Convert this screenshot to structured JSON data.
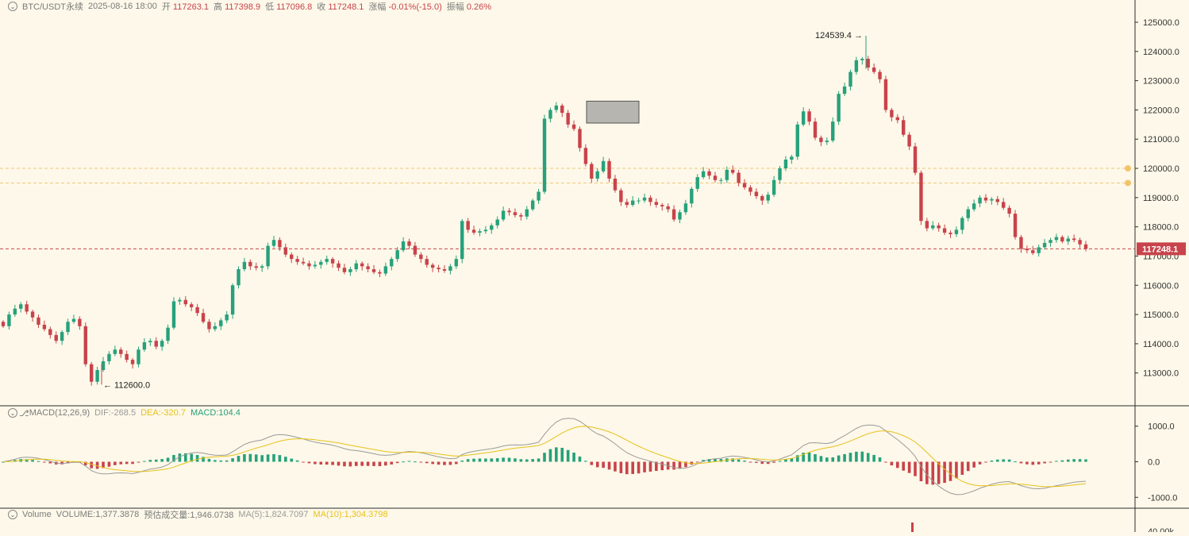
{
  "header": {
    "symbol": "BTC/USDT永续",
    "datetime": "2025-08-16 18:00",
    "open_label": "开",
    "open": "117263.1",
    "high_label": "高",
    "high": "117398.9",
    "low_label": "低",
    "low": "117096.8",
    "close_label": "收",
    "close": "117248.1",
    "change_label": "涨幅",
    "change": "-0.01%(-15.0)",
    "amplitude_label": "振幅",
    "amplitude": "0.26%"
  },
  "macd_header": {
    "name": "MACD(12,26,9)",
    "dif": "DIF:-268.5",
    "dea": "DEA:-320.7",
    "macd": "MACD:104.4"
  },
  "volume_header": {
    "name": "Volume",
    "volume": "VOLUME:1,377.3878",
    "estimate": "预估成交量:1,946.0738",
    "ma5": "MA(5):1,824.7097",
    "ma10": "MA(10):1,304.3798"
  },
  "annotations": {
    "high_marker": "124539.4",
    "low_marker": "112600.0",
    "last_price": "117248.1"
  },
  "colors": {
    "up": "#26a17b",
    "down": "#c8434b",
    "background": "#fdf8e9",
    "dea_line": "#e7c21b",
    "dif_line": "#9a9a9a"
  },
  "chart_data": [
    {
      "type": "candlestick",
      "title": "BTC/USDT永续",
      "price_ticks": [
        "125000.0",
        "124000.0",
        "123000.0",
        "122000.0",
        "121000.0",
        "120000.0",
        "119000.0",
        "118000.0",
        "117000.0",
        "116000.0",
        "115000.0",
        "114000.0",
        "113000.0"
      ],
      "ylim": [
        112000,
        125400
      ],
      "last_price": 117248.1,
      "dashed_levels": [
        120000,
        119500,
        117248.1
      ],
      "close_series": [
        114600,
        115000,
        115200,
        115350,
        115100,
        114900,
        114650,
        114500,
        114300,
        114100,
        114400,
        114750,
        114850,
        114600,
        113300,
        112700,
        113100,
        113400,
        113650,
        113800,
        113650,
        113450,
        113300,
        113800,
        114050,
        114100,
        113900,
        114100,
        114550,
        115450,
        115500,
        115350,
        115250,
        115050,
        114750,
        114500,
        114600,
        114800,
        115000,
        116000,
        116550,
        116800,
        116650,
        116600,
        116650,
        117350,
        117550,
        117300,
        117050,
        116900,
        116800,
        116750,
        116650,
        116700,
        116800,
        116900,
        116750,
        116600,
        116450,
        116550,
        116750,
        116650,
        116550,
        116450,
        116400,
        116650,
        116900,
        117200,
        117500,
        117350,
        117050,
        116900,
        116700,
        116600,
        116550,
        116500,
        116650,
        116900,
        118200,
        117900,
        117800,
        117850,
        117900,
        118050,
        118250,
        118550,
        118500,
        118400,
        118350,
        118600,
        118900,
        119200,
        121700,
        122000,
        122150,
        121900,
        121500,
        121350,
        120700,
        120150,
        119650,
        119900,
        120250,
        119650,
        119250,
        118850,
        118750,
        118900,
        118900,
        119000,
        118850,
        118750,
        118700,
        118600,
        118250,
        118500,
        118800,
        119300,
        119700,
        119900,
        119750,
        119600,
        119600,
        119950,
        119850,
        119500,
        119350,
        119200,
        119050,
        118900,
        119100,
        119600,
        120000,
        120300,
        120400,
        121500,
        121950,
        121600,
        121050,
        120900,
        120950,
        121600,
        122550,
        122800,
        123300,
        123700,
        123750,
        123450,
        123300,
        123050,
        122000,
        121750,
        121650,
        121150,
        120750,
        119850,
        118200,
        117950,
        118050,
        117950,
        117800,
        117750,
        117900,
        118300,
        118600,
        118800,
        119000,
        118900,
        118950,
        118850,
        118650,
        118450,
        117650,
        117250,
        117200,
        117100,
        117300,
        117450,
        117550,
        117650,
        117500,
        117600,
        117550,
        117400,
        117250
      ],
      "high_marker": 124539.4,
      "low_marker": 112600.0,
      "highlight_zone": [
        121550,
        122300
      ]
    },
    {
      "type": "bar",
      "title": "MACD(12,26,9)",
      "y_ticks": [
        "1000.0",
        "0.0",
        "-1000.0"
      ],
      "ylim": [
        -1200,
        1200
      ],
      "series": [
        {
          "name": "DIF",
          "value": -268.5
        },
        {
          "name": "DEA",
          "value": -320.7
        },
        {
          "name": "MACD",
          "value": 104.4
        }
      ]
    },
    {
      "type": "bar",
      "title": "Volume",
      "y_ticks": [
        "40.00k"
      ]
    }
  ]
}
